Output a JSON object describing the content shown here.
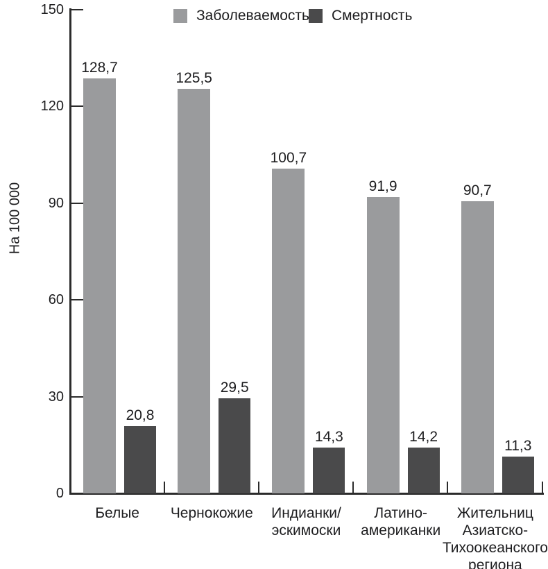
{
  "chart_data": {
    "type": "bar",
    "title": "",
    "xlabel": "",
    "ylabel": "На 100 000",
    "ylim": [
      0,
      150
    ],
    "yticks": [
      0,
      30,
      60,
      90,
      120,
      150
    ],
    "grid": false,
    "legend_position": "top",
    "categories": [
      "Белые",
      "Чернокожие",
      "Индианки/эскимоски",
      "Латино-американки",
      "Жительниц Азиатско-Тихоокеанского региона"
    ],
    "category_lines": [
      [
        "Белые"
      ],
      [
        "Чернокожие"
      ],
      [
        "Индианки/",
        "эскимоски"
      ],
      [
        "Латино-",
        "американки"
      ],
      [
        "Жительниц",
        "Азиатско-",
        "Тихоокеанского",
        "региона"
      ]
    ],
    "series": [
      {
        "name": "Заболеваемость",
        "color": "#9a9b9d",
        "values": [
          128.7,
          125.5,
          100.7,
          91.9,
          90.7
        ],
        "value_labels": [
          "128,7",
          "125,5",
          "100,7",
          "91,9",
          "90,7"
        ]
      },
      {
        "name": "Смертность",
        "color": "#4a4a4b",
        "values": [
          20.8,
          29.5,
          14.3,
          14.2,
          11.3
        ],
        "value_labels": [
          "20,8",
          "29,5",
          "14,3",
          "14,2",
          "11,3"
        ]
      }
    ]
  },
  "colors": {
    "axis": "#2b2b2b",
    "text": "#1d1d1f",
    "background": "#ffffff"
  }
}
